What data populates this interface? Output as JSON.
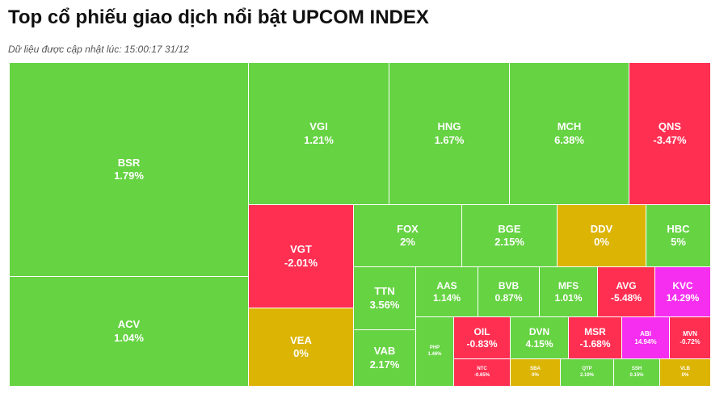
{
  "header": {
    "title": "Top cổ phiếu giao dịch nổi bật UPCOM INDEX",
    "subtitle": "Dữ liệu được cập nhật lúc: 15:00:17 31/12"
  },
  "colors": {
    "up": "#66d343",
    "down": "#ff2f52",
    "flat": "#dcb404",
    "ceiling": "#f52ef0"
  },
  "chart_data": {
    "type": "treemap",
    "title": "Top cổ phiếu giao dịch nổi bật UPCOM INDEX",
    "tiles": [
      {
        "symbol": "BSR",
        "change": "1.79%",
        "value": 1.79,
        "status": "up"
      },
      {
        "symbol": "ACV",
        "change": "1.04%",
        "value": 1.04,
        "status": "up"
      },
      {
        "symbol": "VGI",
        "change": "1.21%",
        "value": 1.21,
        "status": "up"
      },
      {
        "symbol": "HNG",
        "change": "1.67%",
        "value": 1.67,
        "status": "up"
      },
      {
        "symbol": "MCH",
        "change": "6.38%",
        "value": 6.38,
        "status": "up"
      },
      {
        "symbol": "QNS",
        "change": "-3.47%",
        "value": -3.47,
        "status": "down"
      },
      {
        "symbol": "VGT",
        "change": "-2.01%",
        "value": -2.01,
        "status": "down"
      },
      {
        "symbol": "VEA",
        "change": "0%",
        "value": 0,
        "status": "flat"
      },
      {
        "symbol": "FOX",
        "change": "2%",
        "value": 2,
        "status": "up"
      },
      {
        "symbol": "BGE",
        "change": "2.15%",
        "value": 2.15,
        "status": "up"
      },
      {
        "symbol": "DDV",
        "change": "0%",
        "value": 0,
        "status": "flat"
      },
      {
        "symbol": "HBC",
        "change": "5%",
        "value": 5,
        "status": "up"
      },
      {
        "symbol": "TTN",
        "change": "3.56%",
        "value": 3.56,
        "status": "up"
      },
      {
        "symbol": "VAB",
        "change": "2.17%",
        "value": 2.17,
        "status": "up"
      },
      {
        "symbol": "AAS",
        "change": "1.14%",
        "value": 1.14,
        "status": "up"
      },
      {
        "symbol": "BVB",
        "change": "0.87%",
        "value": 0.87,
        "status": "up"
      },
      {
        "symbol": "MFS",
        "change": "1.01%",
        "value": 1.01,
        "status": "up"
      },
      {
        "symbol": "AVG",
        "change": "-5.48%",
        "value": -5.48,
        "status": "down"
      },
      {
        "symbol": "KVC",
        "change": "14.29%",
        "value": 14.29,
        "status": "ceiling"
      },
      {
        "symbol": "PHP",
        "change": "1.46%",
        "value": 1.46,
        "status": "up"
      },
      {
        "symbol": "OIL",
        "change": "-0.83%",
        "value": -0.83,
        "status": "down"
      },
      {
        "symbol": "DVN",
        "change": "4.15%",
        "value": 4.15,
        "status": "up"
      },
      {
        "symbol": "MSR",
        "change": "-1.68%",
        "value": -1.68,
        "status": "down"
      },
      {
        "symbol": "ABI",
        "change": "14.94%",
        "value": 14.94,
        "status": "ceiling"
      },
      {
        "symbol": "MVN",
        "change": "-0.72%",
        "value": -0.72,
        "status": "down"
      },
      {
        "symbol": "NTC",
        "change": "-0.65%",
        "value": -0.65,
        "status": "down"
      },
      {
        "symbol": "SBA",
        "change": "0%",
        "value": 0,
        "status": "flat"
      },
      {
        "symbol": "QTP",
        "change": "2.19%",
        "value": 2.19,
        "status": "up"
      },
      {
        "symbol": "SSH",
        "change": "0.15%",
        "value": 0.15,
        "status": "up"
      },
      {
        "symbol": "VLB",
        "change": "0%",
        "value": 0,
        "status": "flat"
      }
    ]
  }
}
